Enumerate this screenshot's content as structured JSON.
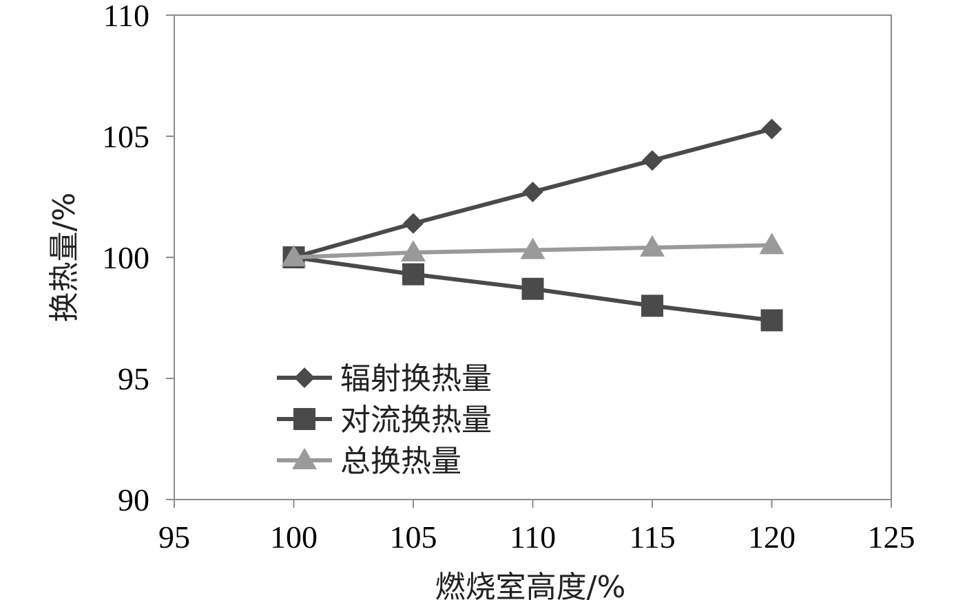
{
  "chart_data": {
    "type": "line",
    "xlabel": "燃烧室高度/%",
    "ylabel": "换热量/%",
    "xlim": [
      95,
      125
    ],
    "ylim": [
      90,
      110
    ],
    "xticks": [
      95,
      100,
      105,
      110,
      115,
      120,
      125
    ],
    "yticks": [
      90,
      95,
      100,
      105,
      110
    ],
    "x": [
      100,
      105,
      110,
      115,
      120
    ],
    "series": [
      {
        "name": "辐射换热量",
        "values": [
          100,
          101.4,
          102.7,
          104.0,
          105.3
        ],
        "color": "#4a4a4a",
        "marker": "diamond"
      },
      {
        "name": "对流换热量",
        "values": [
          100,
          99.3,
          98.7,
          98.0,
          97.4
        ],
        "color": "#4a4a4a",
        "marker": "square"
      },
      {
        "name": "总换热量",
        "values": [
          100,
          100.2,
          100.3,
          100.4,
          100.5
        ],
        "color": "#9a9a9a",
        "marker": "triangle"
      }
    ],
    "grid": false,
    "legend_position": "bottom-left"
  }
}
